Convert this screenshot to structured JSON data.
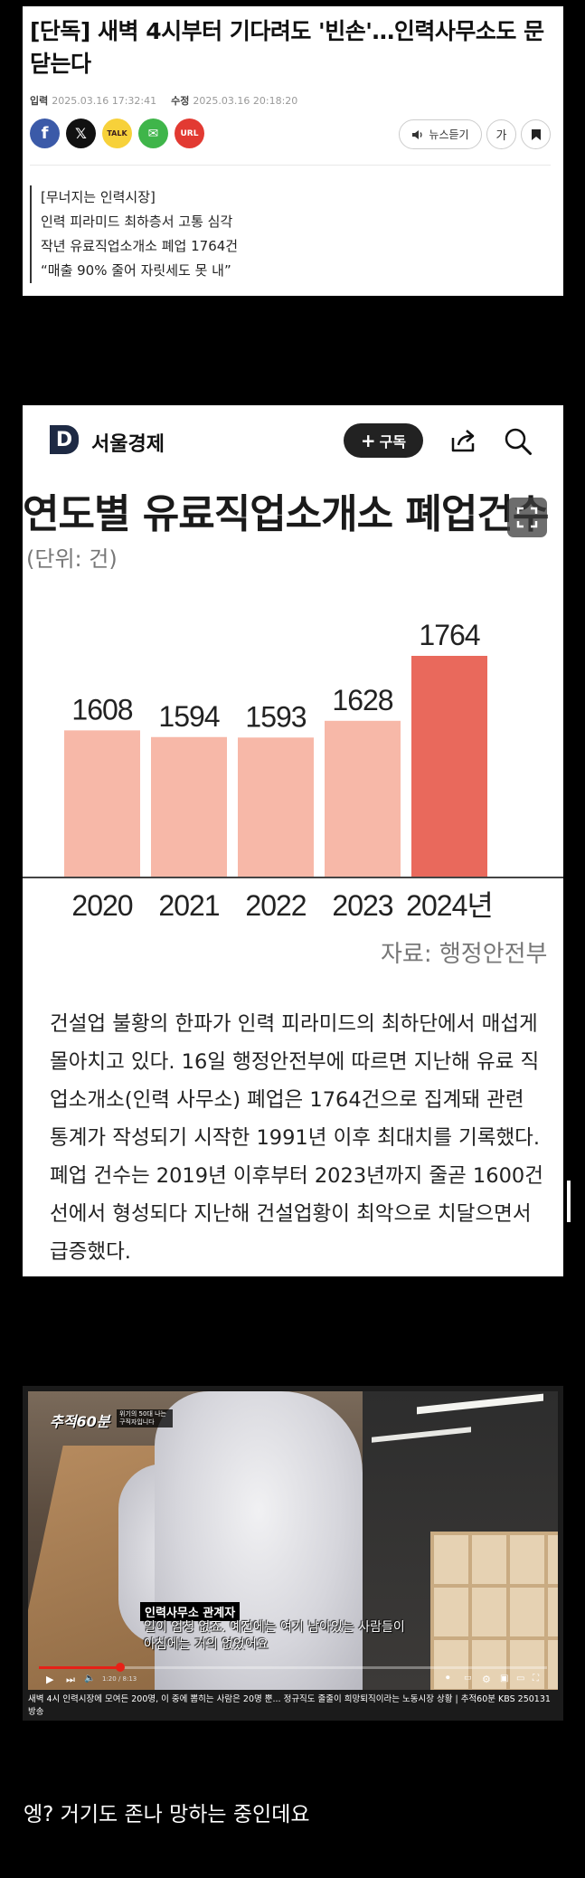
{
  "article": {
    "headline": "[단독] 새벽 4시부터 기다려도 '빈손'…인력사무소도 문 닫는다",
    "dates": {
      "input_label": "입력",
      "input_value": "2025.03.16 17:32:41",
      "edit_label": "수정",
      "edit_value": "2025.03.16 20:18:20"
    },
    "share_buttons": {
      "facebook": "f",
      "x": "𝕏",
      "kakao": "TALK",
      "mail": "✉",
      "url": "URL"
    },
    "tools": {
      "listen_label": "뉴스듣기",
      "font_label": "가"
    },
    "summary": [
      "[무너지는 인력시장]",
      "인력 피라미드 최하층서 고통 심각",
      "작년 유료직업소개소 폐업 1764건",
      "“매출 90% 줄어 자릿세도 못 내”"
    ]
  },
  "outlet": {
    "logo_letter": "D",
    "name": "서울경제",
    "subscribe_label": "구독",
    "icons": [
      "share-icon",
      "search-icon",
      "expand-icon"
    ]
  },
  "chart_data": {
    "type": "bar",
    "title": "연도별 유료직업소개소 폐업건수",
    "unit": "(단위: 건)",
    "categories": [
      "2020",
      "2021",
      "2022",
      "2023",
      "2024년"
    ],
    "values": [
      1608,
      1594,
      1593,
      1628,
      1764
    ],
    "bar_colors": [
      "#f7b8a8",
      "#f7b8a8",
      "#f7b8a8",
      "#f7b8a8",
      "#e9695c"
    ],
    "ylim": [
      1300,
      1800
    ],
    "grid": false,
    "source": "자료: 행정안전부"
  },
  "body_text": "건설업 불황의 한파가 인력 피라미드의 최하단에서 매섭게 몰아치고 있다. 16일 행정안전부에 따르면 지난해 유료 직업소개소(인력 사무소) 폐업은 1764건으로 집계돼 관련 통계가 작성되기 시작한 1991년 이후 최대치를 기록했다. 폐업 건수는 2019년 이후부터 2023년까지 줄곧 1600건 선에서 형성되다 지난해 건설업황이 최악으로 치달으면서 급증했다.",
  "video": {
    "show_logo": "추적60분",
    "logo_sub": "위기의 50대 나는 구직자입니다",
    "caption_tag": "인력사무소 관계자",
    "caption_line1": "일이 엄청 없죠. 예전에는 여기 남아있는 사람들이",
    "caption_line2": "아침에는 거의 없었어요",
    "time": "1:20 / 8:13",
    "progress": 0.16,
    "title": "새벽 4시 인력시장에 모여든 200명, 이 중에 뽑히는 사람은 20명 뿐... 정규직도 줄줄이 희망퇴직이라는 노동시장 상황 | 추적60분 KBS 250131 방송",
    "accent": "#e62117"
  },
  "comment": "엥? 거기도 존나 망하는 중인데요"
}
